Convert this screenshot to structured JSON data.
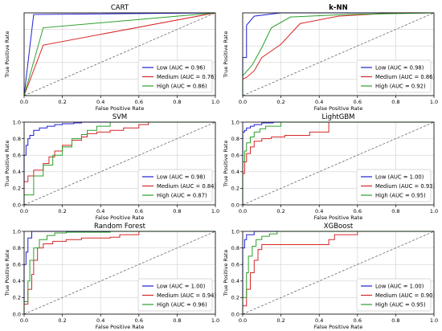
{
  "colors": {
    "low": "#1f1fd6",
    "medium": "#d62728",
    "high": "#2ca02c",
    "diagonal": "#555555",
    "axis": "#000000",
    "grid": "#d0d0d0"
  },
  "chart_data": [
    {
      "type": "line",
      "title": "CART",
      "title_bold": false,
      "xlabel": "False Positive Rate",
      "ylabel": "True Positive Rate",
      "xlim": [
        0,
        1
      ],
      "ylim": [
        0,
        1
      ],
      "grid": true,
      "legend_position": "lower-right",
      "ticks": {
        "x": [
          "0.0",
          "0.2",
          "0.4",
          "0.6",
          "0.8",
          "1.0"
        ],
        "y": [],
        "y_values": []
      },
      "series": [
        {
          "name": "Low (AUC = 0.96)",
          "key": "low",
          "x": [
            0,
            0.05,
            1
          ],
          "y": [
            0,
            0.98,
            1
          ]
        },
        {
          "name": "Medium (AUC = 0.76)",
          "key": "medium",
          "x": [
            0,
            0.1,
            1
          ],
          "y": [
            0,
            0.61,
            1
          ]
        },
        {
          "name": "High (AUC = 0.86)",
          "key": "high",
          "x": [
            0,
            0.1,
            1
          ],
          "y": [
            0,
            0.82,
            1
          ]
        }
      ]
    },
    {
      "type": "line",
      "title": "k-NN",
      "title_bold": true,
      "xlabel": "False Positive Rate",
      "ylabel": "True Positive Rate",
      "xlim": [
        0,
        1
      ],
      "ylim": [
        0,
        1
      ],
      "grid": true,
      "legend_position": "lower-right",
      "ticks": {
        "x": [
          "0.0",
          "0.2",
          "0.4",
          "0.6",
          "0.8",
          "1.0"
        ],
        "y": [],
        "y_values": []
      },
      "series": [
        {
          "name": "Low (AUC = 0.98)",
          "key": "low",
          "x": [
            0,
            0,
            0.02,
            0.02,
            0.06,
            0.2,
            1
          ],
          "y": [
            0,
            0.46,
            0.46,
            0.85,
            0.96,
            1,
            1
          ]
        },
        {
          "name": "Medium (AUC = 0.86)",
          "key": "medium",
          "x": [
            0,
            0,
            0.02,
            0.06,
            0.1,
            0.2,
            0.3,
            0.5,
            0.8,
            1
          ],
          "y": [
            0,
            0.2,
            0.22,
            0.3,
            0.46,
            0.62,
            0.87,
            0.96,
            1,
            1
          ]
        },
        {
          "name": "High (AUC = 0.92)",
          "key": "high",
          "x": [
            0,
            0,
            0.05,
            0.1,
            0.15,
            0.25,
            0.55,
            1
          ],
          "y": [
            0,
            0.24,
            0.37,
            0.58,
            0.82,
            0.95,
            0.98,
            1
          ]
        }
      ]
    },
    {
      "type": "line",
      "title": "SVM",
      "title_bold": false,
      "xlabel": "False Positive Rate",
      "ylabel": "True Positive Rate",
      "xlim": [
        0,
        1
      ],
      "ylim": [
        0,
        1
      ],
      "grid": true,
      "legend_position": "lower-right",
      "ticks": {
        "x": [
          "0.0",
          "0.2",
          "0.4",
          "0.6",
          "0.8",
          "1.0"
        ],
        "y": [
          "0.0",
          "0.2",
          "0.4",
          "0.6",
          "0.8",
          "1.0"
        ],
        "y_values": [
          0,
          0.2,
          0.4,
          0.6,
          0.8,
          1.0
        ]
      },
      "series": [
        {
          "name": "Low (AUC = 0.98)",
          "key": "low",
          "x": [
            0,
            0,
            0.01,
            0.01,
            0.02,
            0.02,
            0.03,
            0.03,
            0.05,
            0.05,
            0.08,
            0.08,
            0.12,
            0.12,
            0.16,
            0.16,
            0.2,
            0.2,
            0.26,
            0.26,
            0.3,
            0.3,
            1
          ],
          "y": [
            0,
            0.6,
            0.6,
            0.72,
            0.72,
            0.8,
            0.8,
            0.84,
            0.84,
            0.9,
            0.9,
            0.93,
            0.93,
            0.95,
            0.95,
            0.97,
            0.97,
            0.98,
            0.98,
            0.99,
            0.99,
            1,
            1
          ]
        },
        {
          "name": "Medium (AUC = 0.84)",
          "key": "medium",
          "x": [
            0,
            0,
            0.02,
            0.02,
            0.05,
            0.05,
            0.1,
            0.1,
            0.13,
            0.13,
            0.16,
            0.16,
            0.2,
            0.2,
            0.25,
            0.25,
            0.3,
            0.3,
            0.33,
            0.33,
            0.38,
            0.38,
            0.45,
            0.45,
            0.52,
            0.52,
            0.6,
            0.6,
            0.65,
            0.65,
            1
          ],
          "y": [
            0,
            0.28,
            0.28,
            0.35,
            0.35,
            0.42,
            0.42,
            0.5,
            0.5,
            0.58,
            0.58,
            0.65,
            0.65,
            0.72,
            0.72,
            0.78,
            0.78,
            0.82,
            0.82,
            0.86,
            0.86,
            0.88,
            0.88,
            0.9,
            0.9,
            0.93,
            0.93,
            0.97,
            0.97,
            1,
            1
          ]
        },
        {
          "name": "High (AUC = 0.87)",
          "key": "high",
          "x": [
            0,
            0,
            0.05,
            0.05,
            0.1,
            0.1,
            0.15,
            0.15,
            0.2,
            0.2,
            0.25,
            0.25,
            0.3,
            0.3,
            0.33,
            0.33,
            0.38,
            0.38,
            0.45,
            0.45,
            1
          ],
          "y": [
            0,
            0.12,
            0.12,
            0.35,
            0.35,
            0.48,
            0.48,
            0.6,
            0.6,
            0.7,
            0.7,
            0.8,
            0.8,
            0.85,
            0.85,
            0.9,
            0.9,
            0.95,
            0.95,
            1,
            1
          ]
        }
      ]
    },
    {
      "type": "line",
      "title": "LightGBM",
      "title_bold": false,
      "xlabel": "False Positive Rate",
      "ylabel": "True Positive Rate",
      "xlim": [
        0,
        1
      ],
      "ylim": [
        0,
        1
      ],
      "grid": true,
      "legend_position": "lower-right",
      "ticks": {
        "x": [
          "0.0",
          "0.2",
          "0.4",
          "0.6",
          "0.8",
          "1.0"
        ],
        "y": [
          "0.0",
          "0.2",
          "0.4",
          "0.6",
          "0.8",
          "1.0"
        ],
        "y_values": [
          0,
          0.2,
          0.4,
          0.6,
          0.8,
          1.0
        ]
      },
      "series": [
        {
          "name": "Low (AUC = 1.00)",
          "key": "low",
          "x": [
            0,
            0,
            0.01,
            0.01,
            0.02,
            0.02,
            0.04,
            0.04,
            0.06,
            0.06,
            0.1,
            0.1,
            0.16,
            0.16,
            1
          ],
          "y": [
            0,
            0.88,
            0.88,
            0.9,
            0.9,
            0.93,
            0.93,
            0.95,
            0.95,
            0.97,
            0.97,
            0.99,
            0.99,
            1,
            1
          ]
        },
        {
          "name": "Medium (AUC = 0.93)",
          "key": "medium",
          "x": [
            0,
            0,
            0.01,
            0.01,
            0.02,
            0.02,
            0.04,
            0.04,
            0.06,
            0.06,
            0.1,
            0.1,
            0.15,
            0.15,
            0.22,
            0.22,
            0.35,
            0.35,
            0.45,
            0.45,
            1
          ],
          "y": [
            0,
            0.38,
            0.38,
            0.52,
            0.52,
            0.62,
            0.62,
            0.7,
            0.7,
            0.77,
            0.77,
            0.8,
            0.8,
            0.82,
            0.82,
            0.84,
            0.84,
            0.88,
            0.88,
            1,
            1
          ]
        },
        {
          "name": "High (AUC = 0.95)",
          "key": "high",
          "x": [
            0,
            0,
            0.01,
            0.01,
            0.02,
            0.02,
            0.04,
            0.04,
            0.06,
            0.06,
            0.09,
            0.09,
            0.12,
            0.12,
            0.2,
            0.2,
            1
          ],
          "y": [
            0,
            0.52,
            0.52,
            0.65,
            0.65,
            0.75,
            0.75,
            0.82,
            0.82,
            0.88,
            0.88,
            0.92,
            0.92,
            0.95,
            0.95,
            1,
            1
          ]
        }
      ]
    },
    {
      "type": "line",
      "title": "Random Forest",
      "title_bold": false,
      "xlabel": "False Positive Rate",
      "ylabel": "True Positive Rate",
      "xlim": [
        0,
        1
      ],
      "ylim": [
        0,
        1
      ],
      "grid": true,
      "legend_position": "lower-right",
      "ticks": {
        "x": [
          "0.0",
          "0.2",
          "0.4",
          "0.6",
          "0.8",
          "1.0"
        ],
        "y": [
          "0.0",
          "0.2",
          "0.4",
          "0.6",
          "0.8",
          "1.0"
        ],
        "y_values": [
          0,
          0.2,
          0.4,
          0.6,
          0.8,
          1.0
        ]
      },
      "series": [
        {
          "name": "Low (AUC = 1.00)",
          "key": "low",
          "x": [
            0,
            0,
            0.01,
            0.01,
            0.02,
            0.02,
            0.04,
            0.04,
            0.2,
            0.2,
            1
          ],
          "y": [
            0,
            0.6,
            0.6,
            0.75,
            0.75,
            0.92,
            0.92,
            1,
            1,
            1,
            1
          ]
        },
        {
          "name": "Medium (AUC = 0.94)",
          "key": "medium",
          "x": [
            0,
            0,
            0.02,
            0.02,
            0.04,
            0.04,
            0.05,
            0.05,
            0.07,
            0.07,
            0.1,
            0.1,
            0.15,
            0.15,
            0.22,
            0.22,
            0.3,
            0.3,
            0.45,
            0.45,
            0.5,
            0.5,
            0.6,
            0.6,
            1
          ],
          "y": [
            0,
            0.12,
            0.12,
            0.3,
            0.3,
            0.48,
            0.48,
            0.65,
            0.65,
            0.8,
            0.8,
            0.85,
            0.85,
            0.88,
            0.88,
            0.9,
            0.9,
            0.92,
            0.92,
            0.93,
            0.93,
            0.96,
            0.96,
            1,
            1
          ]
        },
        {
          "name": "High (AUC = 0.96)",
          "key": "high",
          "x": [
            0,
            0,
            0.02,
            0.02,
            0.03,
            0.03,
            0.05,
            0.05,
            0.08,
            0.08,
            0.12,
            0.12,
            0.16,
            0.16,
            0.22,
            0.22,
            0.45,
            0.45,
            1
          ],
          "y": [
            0,
            0.15,
            0.15,
            0.4,
            0.4,
            0.65,
            0.65,
            0.8,
            0.8,
            0.9,
            0.9,
            0.95,
            0.95,
            0.98,
            0.98,
            0.99,
            0.99,
            1,
            1
          ]
        }
      ]
    },
    {
      "type": "line",
      "title": "XGBoost",
      "title_bold": false,
      "xlabel": "False Positive Rate",
      "ylabel": "True Positive Rate",
      "xlim": [
        0,
        1
      ],
      "ylim": [
        0,
        1
      ],
      "grid": true,
      "legend_position": "lower-right",
      "ticks": {
        "x": [
          "0.0",
          "0.2",
          "0.4",
          "0.6",
          "0.8",
          "1.0"
        ],
        "y": [
          "0.0",
          "0.2",
          "0.4",
          "0.6",
          "0.8",
          "1.0"
        ],
        "y_values": [
          0,
          0.2,
          0.4,
          0.6,
          0.8,
          1.0
        ]
      },
      "series": [
        {
          "name": "Low (AUC = 1.00)",
          "key": "low",
          "x": [
            0,
            0,
            0.01,
            0.01,
            0.02,
            0.02,
            0.06,
            0.06,
            1
          ],
          "y": [
            0,
            0.8,
            0.8,
            0.9,
            0.9,
            0.96,
            0.96,
            1,
            1
          ]
        },
        {
          "name": "Medium (AUC = 0.90)",
          "key": "medium",
          "x": [
            0,
            0,
            0.02,
            0.02,
            0.04,
            0.04,
            0.06,
            0.06,
            0.08,
            0.08,
            0.1,
            0.1,
            0.45,
            0.45,
            0.48,
            0.48,
            0.6,
            0.6,
            1
          ],
          "y": [
            0,
            0.1,
            0.1,
            0.3,
            0.3,
            0.5,
            0.5,
            0.65,
            0.65,
            0.78,
            0.78,
            0.84,
            0.84,
            0.9,
            0.9,
            0.96,
            0.96,
            1,
            1
          ]
        },
        {
          "name": "High (AUC = 0.95)",
          "key": "high",
          "x": [
            0,
            0,
            0.02,
            0.02,
            0.03,
            0.03,
            0.05,
            0.05,
            0.07,
            0.07,
            0.1,
            0.1,
            0.14,
            0.14,
            0.18,
            0.18,
            1
          ],
          "y": [
            0,
            0.2,
            0.2,
            0.5,
            0.5,
            0.7,
            0.7,
            0.82,
            0.82,
            0.9,
            0.9,
            0.94,
            0.94,
            0.97,
            0.97,
            1,
            1
          ]
        }
      ]
    }
  ]
}
